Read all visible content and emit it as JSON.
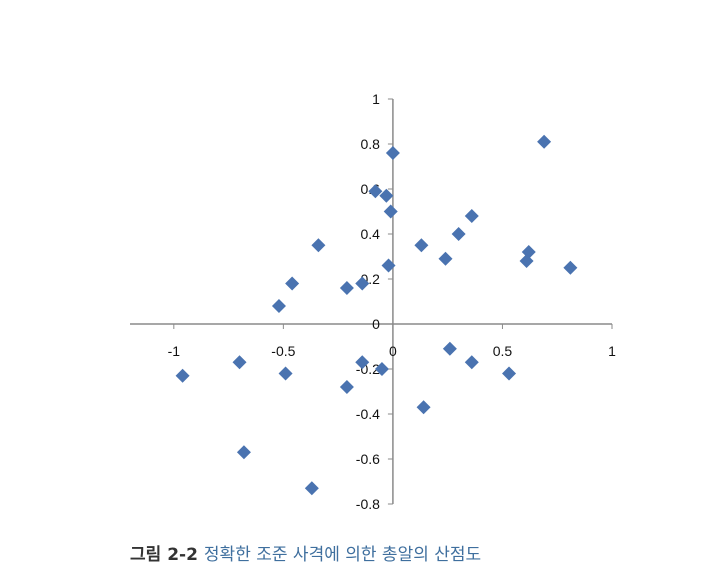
{
  "chart_data": {
    "type": "scatter",
    "title": "",
    "xlabel": "",
    "ylabel": "",
    "xlim": [
      -1.2,
      1.0
    ],
    "ylim": [
      -0.8,
      1.0
    ],
    "xticks": [
      "-1",
      "-0.5",
      "0",
      "0.5",
      "1"
    ],
    "yticks": [
      "1",
      "0.8",
      "0.6",
      "0.4",
      "0.2",
      "0",
      "-0.2",
      "-0.4",
      "-0.6",
      "-0.8"
    ],
    "grid": false,
    "legend": "none",
    "marker": "diamond",
    "color": "#4a73b0",
    "points": [
      {
        "x": 0.69,
        "y": 0.81
      },
      {
        "x": 0.0,
        "y": 0.76
      },
      {
        "x": -0.08,
        "y": 0.59
      },
      {
        "x": -0.03,
        "y": 0.57
      },
      {
        "x": -0.01,
        "y": 0.5
      },
      {
        "x": 0.36,
        "y": 0.48
      },
      {
        "x": 0.3,
        "y": 0.4
      },
      {
        "x": -0.34,
        "y": 0.35
      },
      {
        "x": 0.13,
        "y": 0.35
      },
      {
        "x": 0.62,
        "y": 0.32
      },
      {
        "x": 0.24,
        "y": 0.29
      },
      {
        "x": 0.61,
        "y": 0.28
      },
      {
        "x": -0.02,
        "y": 0.26
      },
      {
        "x": 0.81,
        "y": 0.25
      },
      {
        "x": -0.46,
        "y": 0.18
      },
      {
        "x": -0.14,
        "y": 0.18
      },
      {
        "x": -0.21,
        "y": 0.16
      },
      {
        "x": -0.52,
        "y": 0.08
      },
      {
        "x": 0.26,
        "y": -0.11
      },
      {
        "x": -0.7,
        "y": -0.17
      },
      {
        "x": -0.14,
        "y": -0.17
      },
      {
        "x": 0.36,
        "y": -0.17
      },
      {
        "x": -0.05,
        "y": -0.2
      },
      {
        "x": -0.96,
        "y": -0.23
      },
      {
        "x": -0.49,
        "y": -0.22
      },
      {
        "x": 0.53,
        "y": -0.22
      },
      {
        "x": -0.21,
        "y": -0.28
      },
      {
        "x": 0.14,
        "y": -0.37
      },
      {
        "x": -0.68,
        "y": -0.57
      },
      {
        "x": -0.37,
        "y": -0.73
      }
    ]
  },
  "caption": {
    "label": "그림 2-2",
    "text": "정확한 조준 사격에 의한 총알의 산점도"
  }
}
